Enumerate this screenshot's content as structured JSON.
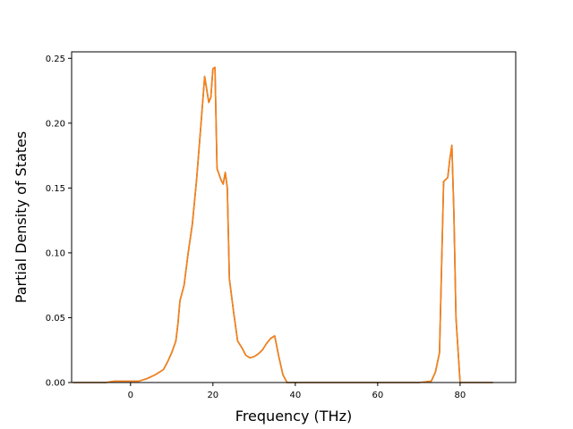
{
  "chart_data": {
    "type": "line",
    "title": "",
    "xlabel": "Frequency (THz)",
    "ylabel": "Partial Density of States",
    "xlim": [
      -14.3,
      93.5
    ],
    "ylim": [
      0.0,
      0.255
    ],
    "xticks": [
      0,
      20,
      40,
      60,
      80
    ],
    "yticks": [
      0.0,
      0.05,
      0.1,
      0.15,
      0.2,
      0.25
    ],
    "xtick_labels": [
      "0",
      "20",
      "40",
      "60",
      "80"
    ],
    "ytick_labels": [
      "0.00",
      "0.05",
      "0.10",
      "0.15",
      "0.20",
      "0.25"
    ],
    "grid": false,
    "legend": "none",
    "series": [
      {
        "color": "#1f77b4",
        "x": [
          -14,
          -6,
          -4,
          0,
          2,
          4,
          6,
          8,
          9,
          10,
          11,
          11.5,
          12,
          13,
          14,
          15,
          16,
          17,
          18,
          19,
          19.5,
          20,
          20.5,
          21,
          22,
          22.5,
          23,
          23.5,
          24,
          25,
          26,
          27,
          28,
          29,
          30,
          31,
          32,
          33,
          34,
          35,
          36,
          37,
          38,
          39,
          40,
          45,
          50,
          60,
          70,
          73,
          74,
          75,
          76,
          77,
          77.5,
          78,
          78.5,
          79,
          80,
          85,
          88
        ],
        "y": [
          0.0,
          0.0,
          0.001,
          0.001,
          0.001,
          0.003,
          0.006,
          0.01,
          0.016,
          0.023,
          0.032,
          0.045,
          0.063,
          0.075,
          0.1,
          0.122,
          0.155,
          0.195,
          0.236,
          0.216,
          0.22,
          0.242,
          0.243,
          0.165,
          0.156,
          0.153,
          0.162,
          0.15,
          0.08,
          0.055,
          0.032,
          0.027,
          0.021,
          0.019,
          0.02,
          0.022,
          0.025,
          0.03,
          0.034,
          0.036,
          0.02,
          0.006,
          0.0,
          0.0,
          0.0,
          0.0,
          0.0,
          0.0,
          0.0,
          0.001,
          0.008,
          0.023,
          0.155,
          0.158,
          0.172,
          0.183,
          0.13,
          0.05,
          0.0,
          0.0,
          0.0
        ]
      },
      {
        "color": "#ff7f0e",
        "x": [
          -14,
          -6,
          -4,
          0,
          2,
          4,
          6,
          8,
          9,
          10,
          11,
          11.5,
          12,
          13,
          14,
          15,
          16,
          17,
          18,
          19,
          19.5,
          20,
          20.5,
          21,
          22,
          22.5,
          23,
          23.5,
          24,
          25,
          26,
          27,
          28,
          29,
          30,
          31,
          32,
          33,
          34,
          35,
          36,
          37,
          38,
          39,
          40,
          45,
          50,
          60,
          70,
          73,
          74,
          75,
          76,
          77,
          77.5,
          78,
          78.5,
          79,
          80,
          85,
          88
        ],
        "y": [
          0.0,
          0.0,
          0.001,
          0.001,
          0.001,
          0.003,
          0.006,
          0.01,
          0.016,
          0.023,
          0.032,
          0.045,
          0.063,
          0.075,
          0.1,
          0.122,
          0.155,
          0.195,
          0.236,
          0.216,
          0.22,
          0.242,
          0.243,
          0.165,
          0.156,
          0.153,
          0.162,
          0.15,
          0.08,
          0.055,
          0.032,
          0.027,
          0.021,
          0.019,
          0.02,
          0.022,
          0.025,
          0.03,
          0.034,
          0.036,
          0.02,
          0.006,
          0.0,
          0.0,
          0.0,
          0.0,
          0.0,
          0.0,
          0.0,
          0.001,
          0.008,
          0.023,
          0.155,
          0.158,
          0.172,
          0.183,
          0.13,
          0.05,
          0.0,
          0.0,
          0.0
        ]
      }
    ]
  }
}
